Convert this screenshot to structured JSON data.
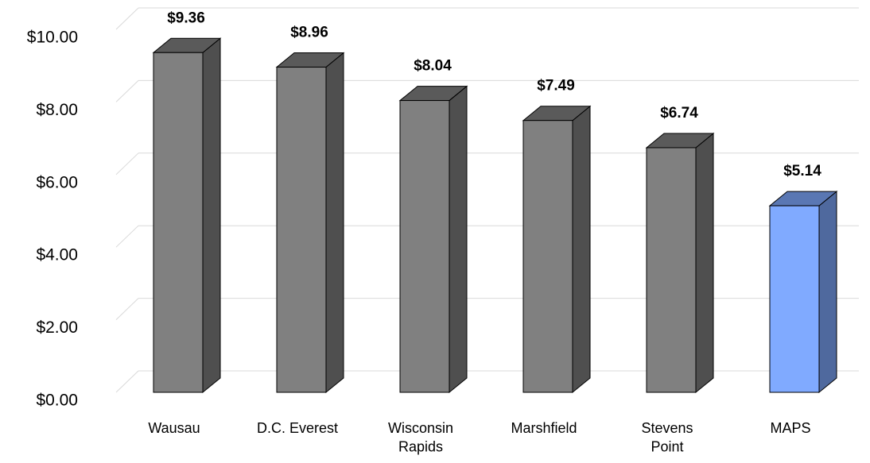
{
  "chart_data": {
    "type": "bar3d",
    "categories": [
      "Wausau",
      "D.C. Everest",
      "Wisconsin\nRapids",
      "Marshfield",
      "Stevens\nPoint",
      "MAPS"
    ],
    "values": [
      9.36,
      8.96,
      8.04,
      7.49,
      6.74,
      5.14
    ],
    "value_labels": [
      "$9.36",
      "$8.96",
      "$8.04",
      "$7.49",
      "$6.74",
      "$5.14"
    ],
    "colors": [
      "#808080",
      "#808080",
      "#808080",
      "#808080",
      "#808080",
      "#80aaff"
    ],
    "ylim": [
      0,
      10
    ],
    "yticks": [
      {
        "value": 0,
        "label": "$0.00"
      },
      {
        "value": 2,
        "label": "$2.00"
      },
      {
        "value": 4,
        "label": "$4.00"
      },
      {
        "value": 6,
        "label": "$6.00"
      },
      {
        "value": 8,
        "label": "$8.00"
      },
      {
        "value": 10,
        "label": "$10.00"
      }
    ],
    "grid": true
  }
}
